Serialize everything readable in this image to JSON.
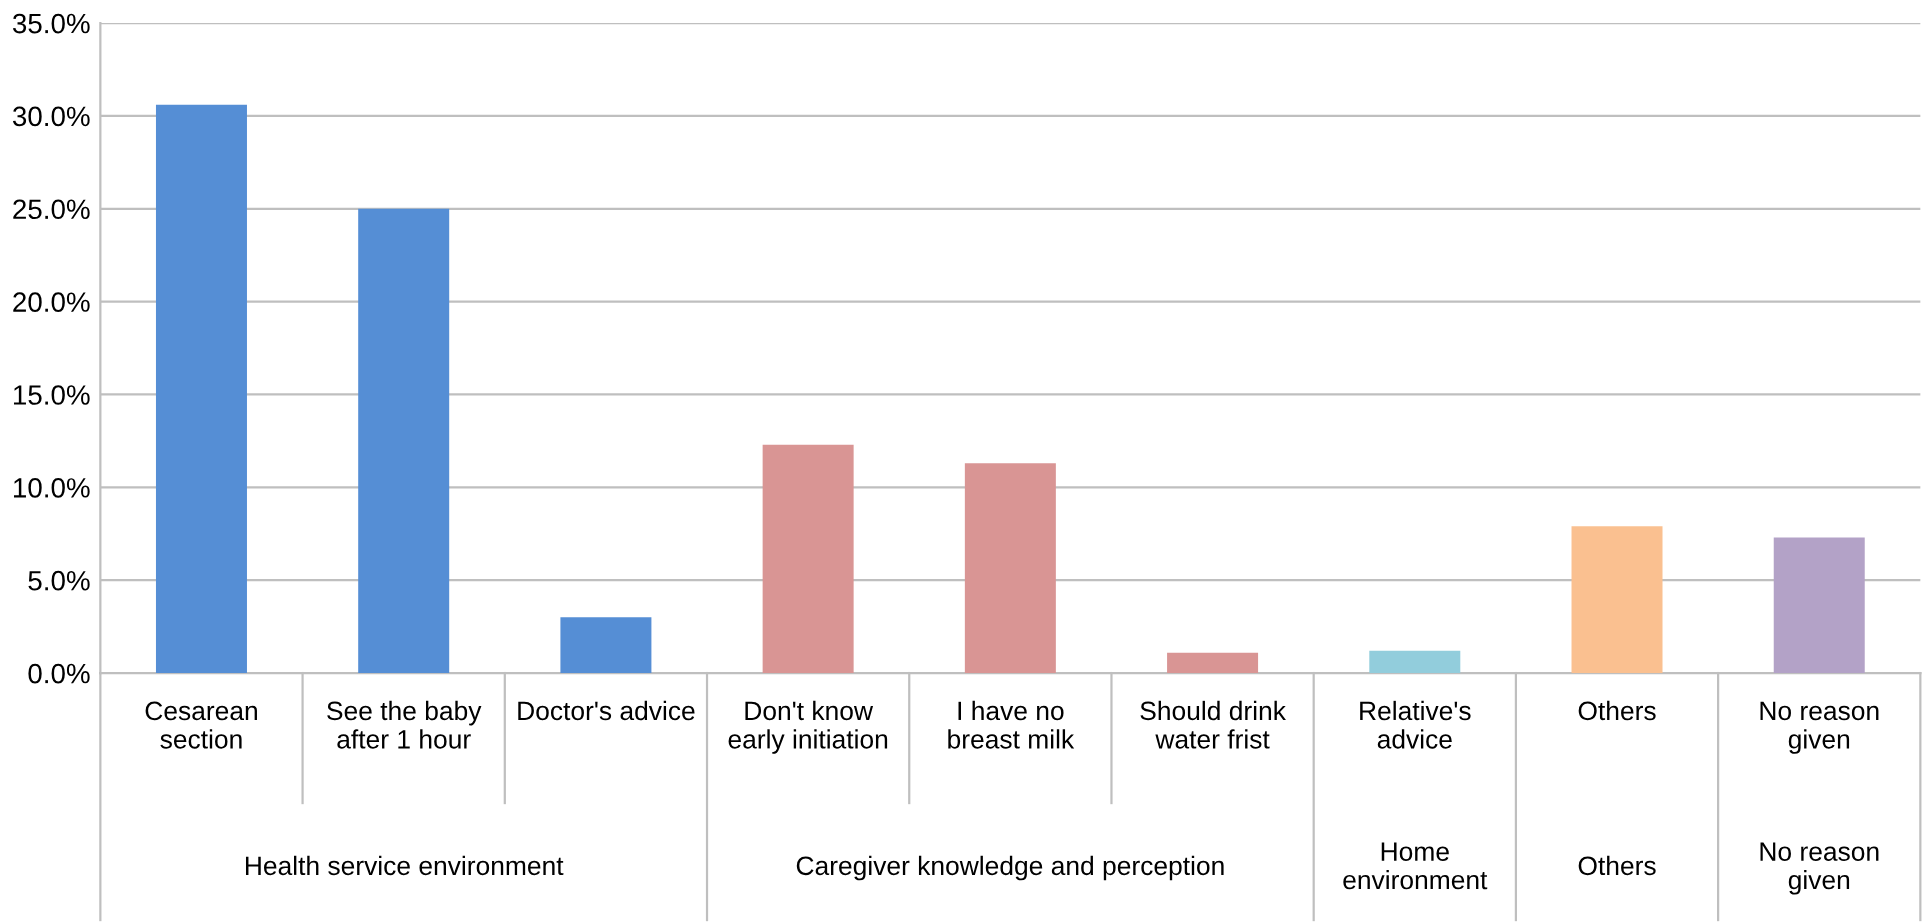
{
  "chart_data": {
    "type": "bar",
    "categories": [
      "Cesarean\nsection",
      "See the baby\nafter 1 hour",
      "Doctor's advice",
      "Don't know\nearly initiation",
      "I have no\nbreast milk",
      "Should drink\nwater frist",
      "Relative's\nadvice",
      "Others",
      "No reason\ngiven"
    ],
    "values": [
      30.6,
      25.0,
      3.0,
      12.3,
      11.3,
      1.1,
      1.2,
      7.9,
      7.3
    ],
    "colors": [
      "#558ed5",
      "#558ed5",
      "#558ed5",
      "#d99594",
      "#d99594",
      "#d99594",
      "#92cddc",
      "#fac090",
      "#b3a2c7"
    ],
    "annotations": [
      "Health service environment",
      "Caregiver knowledge and perception",
      "Home\nenvironment",
      "Others",
      "No reason\ngiven"
    ],
    "ylim": [
      0,
      35
    ],
    "yticks": [
      {
        "value": 0,
        "label": "0.0%"
      },
      {
        "value": 5,
        "label": "5.0%"
      },
      {
        "value": 10,
        "label": "10.0%"
      },
      {
        "value": 15,
        "label": "15.0%"
      },
      {
        "value": 20,
        "label": "20.0%"
      },
      {
        "value": 25,
        "label": "25.0%"
      },
      {
        "value": 30,
        "label": "30.0%"
      },
      {
        "value": 35,
        "label": "35.0%"
      }
    ],
    "grid": "y",
    "legend": false
  }
}
